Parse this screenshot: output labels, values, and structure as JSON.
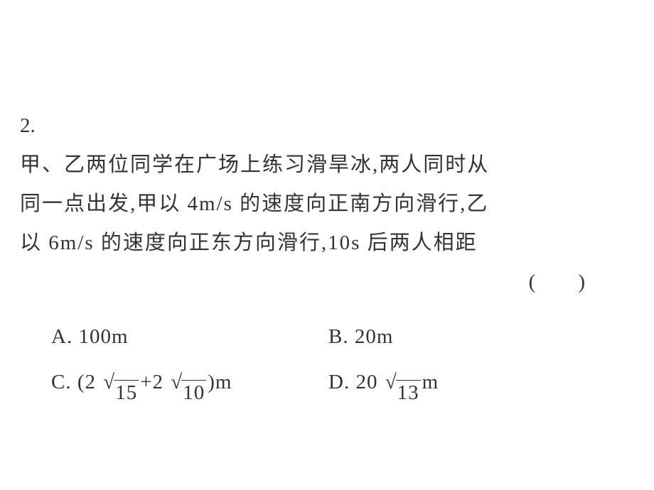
{
  "question": {
    "number": "2.",
    "line1": "甲、乙两位同学在广场上练习滑旱冰,两人同时从",
    "line2": "同一点出发,甲以 4m/s 的速度向正南方向滑行,乙",
    "line3": "以 6m/s 的速度向正东方向滑行,10s 后两人相距",
    "paren_open": "(",
    "paren_close": ")"
  },
  "options": {
    "A": {
      "label": "A.",
      "value": "100m"
    },
    "B": {
      "label": "B.",
      "value": "20m"
    },
    "C": {
      "label": "C.",
      "open": "(2",
      "rad1": "15",
      "plus": "+2",
      "rad2": "10",
      "close": ")m"
    },
    "D": {
      "label": "D.",
      "prefix": "20",
      "rad": "13",
      "suffix": "m"
    }
  },
  "style": {
    "font_size_pt": 29,
    "text_color": "#333333",
    "background_color": "#ffffff",
    "line_height": 1.9,
    "option_line_height": 2.2,
    "sqrt_bar_width": 1.6
  }
}
